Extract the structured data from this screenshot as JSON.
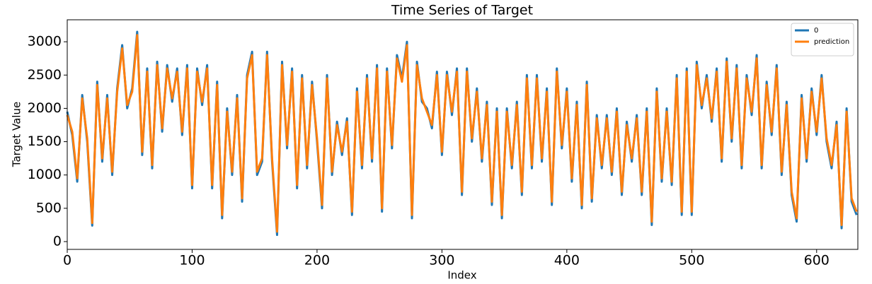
{
  "chart_data": {
    "type": "line",
    "title": "Time Series of Target",
    "x_label": "Index",
    "y_label": "Target Value",
    "legend": "upper right",
    "xlim": [
      0,
      633
    ],
    "ylim": [
      -117,
      3330
    ],
    "xticks": [
      0,
      100,
      200,
      300,
      400,
      500,
      600
    ],
    "yticks": [
      0,
      500,
      1000,
      1500,
      2000,
      2500,
      3000
    ],
    "x": [
      0,
      4,
      8,
      12,
      16,
      20,
      24,
      28,
      32,
      36,
      40,
      44,
      48,
      52,
      56,
      60,
      64,
      68,
      72,
      76,
      80,
      84,
      88,
      92,
      96,
      100,
      104,
      108,
      112,
      116,
      120,
      124,
      128,
      132,
      136,
      140,
      144,
      148,
      152,
      156,
      160,
      164,
      168,
      172,
      176,
      180,
      184,
      188,
      192,
      196,
      200,
      204,
      208,
      212,
      216,
      220,
      224,
      228,
      232,
      236,
      240,
      244,
      248,
      252,
      256,
      260,
      264,
      268,
      272,
      276,
      280,
      284,
      288,
      292,
      296,
      300,
      304,
      308,
      312,
      316,
      320,
      324,
      328,
      332,
      336,
      340,
      344,
      348,
      352,
      356,
      360,
      364,
      368,
      372,
      376,
      380,
      384,
      388,
      392,
      396,
      400,
      404,
      408,
      412,
      416,
      420,
      424,
      428,
      432,
      436,
      440,
      444,
      448,
      452,
      456,
      460,
      464,
      468,
      472,
      476,
      480,
      484,
      488,
      492,
      496,
      500,
      504,
      508,
      512,
      516,
      520,
      524,
      528,
      532,
      536,
      540,
      544,
      548,
      552,
      556,
      560,
      564,
      568,
      572,
      576,
      580,
      584,
      588,
      592,
      596,
      600,
      604,
      608,
      612,
      616,
      620,
      624,
      628,
      632
    ],
    "series": [
      {
        "name": "0",
        "color": "#1f77b4",
        "values": [
          1950,
          1600,
          900,
          2200,
          1500,
          240,
          2400,
          1200,
          2200,
          1000,
          2300,
          2950,
          2000,
          2300,
          3150,
          1300,
          2600,
          1100,
          2700,
          1650,
          2650,
          2100,
          2600,
          1600,
          2650,
          800,
          2600,
          2050,
          2650,
          800,
          2400,
          350,
          2000,
          1000,
          2200,
          600,
          2500,
          2850,
          1000,
          1200,
          2850,
          1200,
          100,
          2700,
          1400,
          2600,
          800,
          2500,
          1100,
          2400,
          1500,
          500,
          2500,
          1000,
          1800,
          1300,
          1850,
          400,
          2300,
          1100,
          2500,
          1200,
          2650,
          450,
          2600,
          1400,
          2800,
          2450,
          3000,
          350,
          2700,
          2100,
          2000,
          1700,
          2550,
          1300,
          2550,
          1900,
          2600,
          700,
          2600,
          1500,
          2300,
          1200,
          2100,
          550,
          2000,
          350,
          2000,
          1100,
          2100,
          700,
          2500,
          1100,
          2500,
          1200,
          2300,
          550,
          2600,
          1400,
          2300,
          900,
          2100,
          500,
          2400,
          600,
          1900,
          1100,
          1900,
          1000,
          2000,
          700,
          1800,
          1200,
          1900,
          700,
          2000,
          250,
          2300,
          900,
          2000,
          850,
          2500,
          400,
          2600,
          400,
          2700,
          2000,
          2500,
          1800,
          2600,
          1200,
          2750,
          1500,
          2650,
          1100,
          2500,
          1900,
          2800,
          1100,
          2400,
          1600,
          2650,
          1000,
          2100,
          700,
          300,
          2200,
          1200,
          2300,
          1600,
          2500,
          1500,
          1100,
          1800,
          200,
          2000,
          600,
          400
        ]
      },
      {
        "name": "prediction",
        "color": "#ff7f0e",
        "values": [
          1900,
          1650,
          950,
          2150,
          1550,
          280,
          2350,
          1250,
          2150,
          1050,
          2250,
          2900,
          2050,
          2250,
          3100,
          1350,
          2550,
          1150,
          2650,
          1700,
          2600,
          2150,
          2550,
          1650,
          2600,
          850,
          2550,
          2100,
          2600,
          850,
          2350,
          400,
          1950,
          1050,
          2150,
          650,
          2450,
          2800,
          1050,
          1250,
          2800,
          1250,
          150,
          2650,
          1450,
          2550,
          850,
          2450,
          1150,
          2350,
          1550,
          550,
          2450,
          1050,
          1750,
          1350,
          1800,
          450,
          2250,
          1150,
          2450,
          1250,
          2600,
          500,
          2550,
          1450,
          2750,
          2400,
          2950,
          400,
          2650,
          2150,
          1950,
          1750,
          2500,
          1350,
          2500,
          1950,
          2550,
          750,
          2550,
          1550,
          2250,
          1250,
          2050,
          600,
          1950,
          400,
          1950,
          1150,
          2050,
          750,
          2450,
          1150,
          2450,
          1250,
          2250,
          600,
          2550,
          1450,
          2250,
          950,
          2050,
          550,
          2350,
          650,
          1850,
          1150,
          1850,
          1050,
          1950,
          750,
          1750,
          1250,
          1850,
          750,
          1950,
          300,
          2250,
          950,
          1950,
          900,
          2450,
          450,
          2550,
          450,
          2650,
          2050,
          2450,
          1850,
          2550,
          1250,
          2700,
          1550,
          2600,
          1150,
          2450,
          1950,
          2750,
          1150,
          2350,
          1650,
          2600,
          1050,
          2050,
          750,
          350,
          2150,
          1250,
          2250,
          1650,
          2450,
          1550,
          1150,
          1750,
          250,
          1950,
          650,
          450
        ]
      }
    ]
  }
}
